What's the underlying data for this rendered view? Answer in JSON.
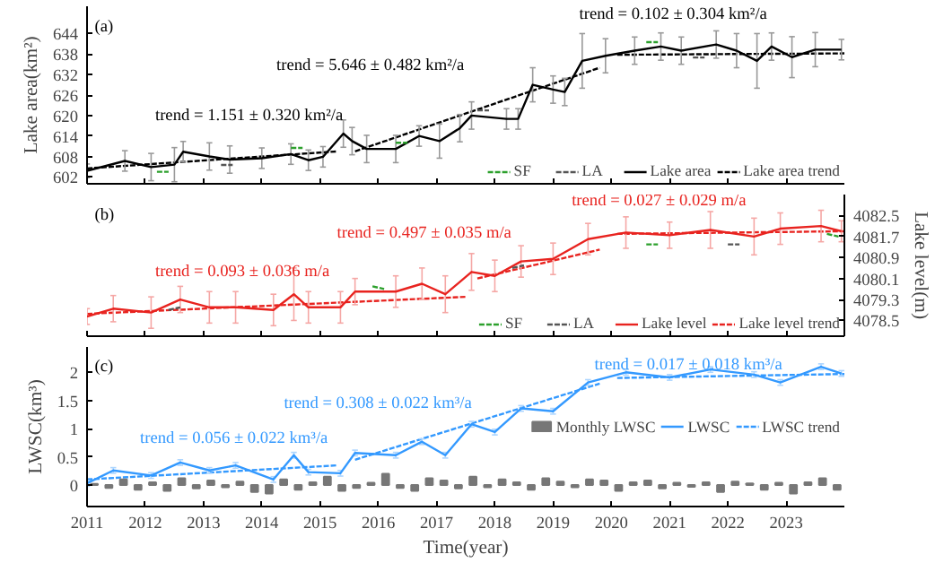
{
  "chart_data": [
    {
      "type": "line",
      "ylabel": "Lake area(km²)",
      "xlim": [
        2011,
        2024
      ],
      "xticks": [
        2011,
        2012,
        2013,
        2014,
        2015,
        2016,
        2017,
        2018,
        2019,
        2020,
        2021,
        2022,
        2023
      ],
      "ylim": [
        600,
        652
      ],
      "yticks": [
        602,
        608,
        614,
        620,
        626,
        632,
        638,
        644
      ],
      "tick_labels": "y",
      "legend": "bottom right",
      "line_style": "solid",
      "annotations": [
        "(a)",
        "trend = 1.151 ± 0.320 km²/a",
        "trend = 5.646 ± 0.482 km²/a",
        "trend = 0.102 ± 0.304 km²/a"
      ],
      "series": [
        {
          "name": "SF",
          "line_style": "dashed",
          "color": "#2ca02c",
          "x": [
            2012.2,
            2012.4
          ],
          "values": [
            603.5,
            603.5
          ]
        },
        {
          "color": "#2ca02c",
          "line_style": "dashed",
          "x": [
            2014.5,
            2014.7
          ],
          "values": [
            610.5,
            610.5
          ]
        },
        {
          "color": "#2ca02c",
          "line_style": "dashed",
          "x": [
            2016.3,
            2016.5
          ],
          "values": [
            612,
            612
          ]
        },
        {
          "color": "#2ca02c",
          "line_style": "dashed",
          "x": [
            2020.6,
            2020.8
          ],
          "values": [
            641.5,
            641.5
          ]
        },
        {
          "name": "LA",
          "line_style": "dashed",
          "color": "#555555",
          "x": [
            2013.3,
            2013.5
          ],
          "values": [
            605.5,
            605.5
          ]
        },
        {
          "color": "#555555",
          "line_style": "dashed",
          "x": [
            2017.7,
            2017.9
          ],
          "values": [
            621.5,
            621.5
          ]
        },
        {
          "color": "#555555",
          "line_style": "dashed",
          "x": [
            2021.4,
            2021.6
          ],
          "values": [
            637,
            637
          ]
        },
        {
          "name": "Lake area",
          "color": "#000000",
          "x": [
            2011.0,
            2011.65,
            2012.1,
            2012.5,
            2012.65,
            2013.1,
            2013.45,
            2014.0,
            2014.5,
            2014.8,
            2015.05,
            2015.4,
            2015.55,
            2015.8,
            2016.3,
            2016.7,
            2017.05,
            2017.4,
            2017.6,
            2018.2,
            2018.4,
            2018.65,
            2019.0,
            2019.2,
            2019.5,
            2019.9,
            2020.4,
            2020.85,
            2021.2,
            2021.8,
            2022.15,
            2022.5,
            2022.75,
            2023.1,
            2023.5,
            2023.95
          ],
          "values": [
            603.8,
            606.7,
            604.9,
            605.6,
            609.4,
            608,
            607.1,
            607.5,
            608.7,
            606.9,
            607.9,
            614.7,
            612.5,
            610.2,
            610.2,
            614,
            612.5,
            616.3,
            620,
            619,
            619,
            629,
            627.6,
            626.9,
            636,
            637.5,
            639,
            640.2,
            639,
            640.8,
            639,
            636,
            640.2,
            637.1,
            639.3,
            639.3
          ],
          "errors": [
            2,
            3,
            4,
            5,
            3,
            4,
            4,
            3,
            3,
            3,
            3,
            4,
            4,
            4,
            4,
            3,
            5,
            4,
            4,
            3,
            3,
            5,
            4,
            4,
            8,
            5,
            4,
            4,
            4,
            4,
            5,
            8,
            4,
            6,
            5,
            3
          ]
        },
        {
          "name": "Lake area trend",
          "line_style": "dashed",
          "color": "#000000",
          "x": [
            2011,
            2015.3
          ],
          "values": [
            604.5,
            609.5
          ]
        },
        {
          "line_style": "dashed",
          "color": "#000000",
          "x": [
            2015.6,
            2019.8
          ],
          "values": [
            609.5,
            634
          ]
        },
        {
          "line_style": "dashed",
          "color": "#000000",
          "x": [
            2020.1,
            2024
          ],
          "values": [
            637.8,
            638.2
          ]
        }
      ]
    },
    {
      "type": "line",
      "y2label": "Lake level(m)",
      "xlim": [
        2011,
        2024
      ],
      "xticks": [
        2011,
        2012,
        2013,
        2014,
        2015,
        2016,
        2017,
        2018,
        2019,
        2020,
        2021,
        2022,
        2023
      ],
      "y2lim": [
        4077.9,
        4083.3
      ],
      "y2ticks": [
        4078.5,
        4079.3,
        4080.1,
        4080.9,
        4081.7,
        4082.5
      ],
      "tick_labels": "y",
      "legend": "bottom right",
      "line_style": "solid",
      "annotations": [
        "(b)",
        "trend = 0.093 ± 0.036 m/a",
        "trend = 0.497 ± 0.035 m/a",
        "trend = 0.027 ± 0.029 m/a"
      ],
      "series": [
        {
          "name": "SF",
          "axis": "y2",
          "line_style": "dashed",
          "color": "#2ca02c",
          "x": [
            2015.9,
            2016.1
          ],
          "values": [
            4079.8,
            4079.7
          ]
        },
        {
          "axis": "y2",
          "line_style": "dashed",
          "color": "#2ca02c",
          "x": [
            2020.6,
            2020.8
          ],
          "values": [
            4081.4,
            4081.4
          ]
        },
        {
          "axis": "y2",
          "line_style": "dashed",
          "color": "#2ca02c",
          "x": [
            2023.7,
            2023.9
          ],
          "values": [
            4081.8,
            4081.7
          ]
        },
        {
          "name": "LA",
          "axis": "y2",
          "line_style": "dashed",
          "color": "#555555",
          "x": [
            2012.4,
            2012.6
          ],
          "values": [
            4078.9,
            4079.0
          ]
        },
        {
          "axis": "y2",
          "line_style": "dashed",
          "color": "#555555",
          "x": [
            2018.3,
            2018.5
          ],
          "values": [
            4080.5,
            4080.6
          ]
        },
        {
          "axis": "y2",
          "line_style": "dashed",
          "color": "#555555",
          "x": [
            2022.0,
            2022.2
          ],
          "values": [
            4081.4,
            4081.4
          ]
        },
        {
          "name": "Lake level",
          "axis": "y2",
          "color": "#e8231f",
          "x": [
            2011.0,
            2011.45,
            2012.1,
            2012.6,
            2013.1,
            2013.55,
            2014.2,
            2014.55,
            2014.8,
            2015.35,
            2015.6,
            2016.3,
            2016.75,
            2017.15,
            2017.6,
            2018.0,
            2018.45,
            2019.0,
            2019.6,
            2020.25,
            2021.0,
            2021.7,
            2022.45,
            2022.9,
            2023.6,
            2023.95
          ],
          "values": [
            4078.65,
            4078.95,
            4078.8,
            4079.3,
            4079.0,
            4079.0,
            4078.9,
            4079.5,
            4079.0,
            4079.0,
            4079.6,
            4079.6,
            4079.9,
            4079.5,
            4080.35,
            4080.2,
            4080.75,
            4080.85,
            4081.6,
            4081.85,
            4081.75,
            4081.95,
            4081.7,
            4082.0,
            4082.1,
            4081.9
          ],
          "errors": [
            0.3,
            0.5,
            0.6,
            0.5,
            0.6,
            0.6,
            0.6,
            1.0,
            0.6,
            0.6,
            0.5,
            0.6,
            0.6,
            0.7,
            0.7,
            0.6,
            0.6,
            0.6,
            0.6,
            0.6,
            0.5,
            0.7,
            0.7,
            0.6,
            0.6,
            0.4
          ]
        },
        {
          "name": "Lake level trend",
          "axis": "y2",
          "line_style": "dashed",
          "color": "#e8231f",
          "x": [
            2011,
            2017.5
          ],
          "values": [
            4078.75,
            4079.4
          ]
        },
        {
          "axis": "y2",
          "line_style": "dashed",
          "color": "#e8231f",
          "x": [
            2017.7,
            2019.8
          ],
          "values": [
            4080.1,
            4081.2
          ]
        },
        {
          "axis": "y2",
          "line_style": "dashed",
          "color": "#e8231f",
          "x": [
            2020.1,
            2024
          ],
          "values": [
            4081.8,
            4081.9
          ]
        }
      ]
    },
    {
      "type": "line",
      "ylabel": "LWSC(km³)",
      "xlabel": "Time(year)",
      "xlim": [
        2011,
        2024
      ],
      "xticks": [
        2011,
        2012,
        2013,
        2014,
        2015,
        2016,
        2017,
        2018,
        2019,
        2020,
        2021,
        2022,
        2023
      ],
      "ylim": [
        -0.38,
        2.45
      ],
      "yticks": [
        0,
        0.5,
        1,
        1.5,
        2
      ],
      "legend": "right",
      "line_style": "solid",
      "annotations": [
        "(c)",
        "trend = 0.056 ± 0.022 km³/a",
        "trend = 0.308 ± 0.022 km³/a",
        "trend = 0.017 ± 0.018 km³/a"
      ],
      "series": [
        {
          "name": "Monthly LWSC",
          "type": "bar",
          "color": "#777777",
          "x": [
            2011.125,
            2011.375,
            2011.625,
            2011.875,
            2012.125,
            2012.375,
            2012.625,
            2012.875,
            2013.125,
            2013.375,
            2013.625,
            2013.875,
            2014.125,
            2014.375,
            2014.625,
            2014.875,
            2015.125,
            2015.375,
            2015.625,
            2015.875,
            2016.125,
            2016.375,
            2016.625,
            2016.875,
            2017.125,
            2017.375,
            2017.625,
            2017.875,
            2018.125,
            2018.375,
            2018.625,
            2018.875,
            2019.125,
            2019.375,
            2019.625,
            2019.875,
            2020.125,
            2020.375,
            2020.625,
            2020.875,
            2021.125,
            2021.375,
            2021.625,
            2021.875,
            2022.125,
            2022.375,
            2022.625,
            2022.875,
            2023.125,
            2023.375,
            2023.625,
            2023.875
          ],
          "values": [
            0.02,
            -0.05,
            0.1,
            -0.08,
            0.05,
            -0.1,
            0.12,
            -0.06,
            0.08,
            -0.04,
            0.06,
            -0.12,
            -0.15,
            0.1,
            -0.08,
            0.05,
            0.15,
            -0.1,
            -0.05,
            0.04,
            0.2,
            -0.05,
            -0.1,
            0.12,
            0.08,
            -0.06,
            0.15,
            -0.04,
            0.1,
            0.05,
            -0.08,
            0.12,
            0.06,
            -0.04,
            0.1,
            0.08,
            -0.1,
            0.05,
            0.08,
            -0.06,
            0.04,
            -0.03,
            0.05,
            -0.12,
            0.06,
            0.03,
            -0.08,
            0.04,
            -0.15,
            0.05,
            0.12,
            -0.08
          ]
        },
        {
          "name": "LWSC",
          "color": "#3399ff",
          "x": [
            2011.0,
            2011.45,
            2012.1,
            2012.6,
            2013.1,
            2013.55,
            2014.2,
            2014.55,
            2014.8,
            2015.35,
            2015.6,
            2016.3,
            2016.75,
            2017.15,
            2017.6,
            2018.0,
            2018.45,
            2019.0,
            2019.6,
            2020.25,
            2021.0,
            2021.7,
            2022.45,
            2022.9,
            2023.6,
            2023.95
          ],
          "values": [
            0.03,
            0.26,
            0.17,
            0.4,
            0.26,
            0.35,
            0.1,
            0.53,
            0.23,
            0.21,
            0.57,
            0.53,
            0.77,
            0.53,
            1.08,
            0.94,
            1.36,
            1.31,
            1.82,
            2.0,
            1.91,
            2.05,
            1.96,
            1.82,
            2.1,
            1.98
          ],
          "errors": [
            0.05,
            0.05,
            0.05,
            0.05,
            0.05,
            0.05,
            0.05,
            0.05,
            0.05,
            0.05,
            0.05,
            0.05,
            0.05,
            0.05,
            0.05,
            0.05,
            0.05,
            0.05,
            0.05,
            0.05,
            0.05,
            0.05,
            0.05,
            0.05,
            0.05,
            0.05
          ]
        },
        {
          "name": "LWSC trend",
          "line_style": "dashed",
          "color": "#3399ff",
          "x": [
            2011,
            2015.3
          ],
          "values": [
            0.1,
            0.35
          ]
        },
        {
          "line_style": "dashed",
          "color": "#3399ff",
          "x": [
            2015.6,
            2019.8
          ],
          "values": [
            0.45,
            1.8
          ]
        },
        {
          "line_style": "dashed",
          "color": "#3399ff",
          "x": [
            2020.1,
            2024
          ],
          "values": [
            1.9,
            1.97
          ]
        }
      ]
    }
  ]
}
